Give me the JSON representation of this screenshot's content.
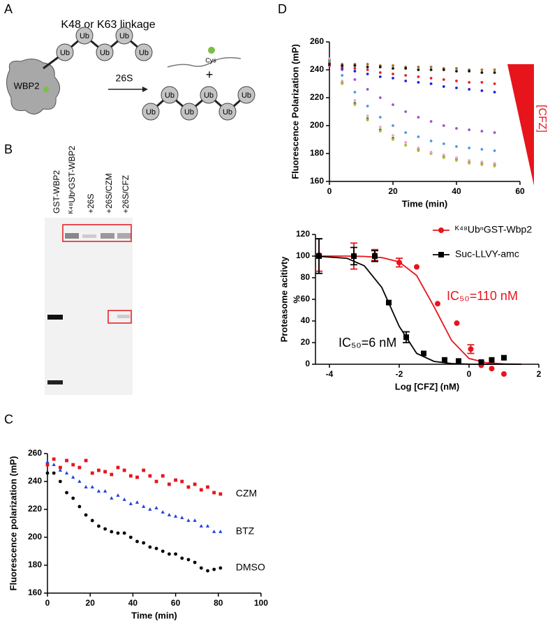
{
  "panels": [
    "A",
    "B",
    "C",
    "D"
  ],
  "diagram": {
    "linkage_label": "K48 or K63 linkage",
    "substrate": "WBP2",
    "enzyme": "26S",
    "ubiquitin": "Ub",
    "cysteine": "Cys",
    "plus": "+"
  },
  "gel": {
    "lanes": [
      "GST-WBP2",
      "ᴷ⁴⁸UbⁿGST-WBP2",
      "+26S",
      "+26S/CZM",
      "+26S/CFZ"
    ]
  },
  "chart_data": [
    {
      "type": "scatter",
      "x_label": "Time (min)",
      "y_label": "Fluorescence polarization (mP)",
      "xlim": [
        0,
        100
      ],
      "ylim": [
        160,
        260
      ],
      "xticks": [
        0,
        20,
        40,
        60,
        80,
        100
      ],
      "yticks": [
        160,
        180,
        200,
        220,
        240,
        260
      ],
      "series": [
        {
          "name": "CZM",
          "color": "#e8141c",
          "marker": "square",
          "x": [
            0,
            3,
            6,
            9,
            12,
            15,
            18,
            21,
            24,
            27,
            30,
            33,
            36,
            39,
            42,
            45,
            48,
            51,
            54,
            57,
            60,
            63,
            66,
            69,
            72,
            75,
            78,
            81
          ],
          "values": [
            252,
            256,
            250,
            255,
            252,
            250,
            255,
            246,
            248,
            247,
            245,
            250,
            248,
            244,
            243,
            248,
            244,
            240,
            244,
            238,
            241,
            240,
            236,
            238,
            234,
            236,
            232,
            231
          ]
        },
        {
          "name": "BTZ",
          "color": "#1f3fe0",
          "marker": "triangle",
          "x": [
            0,
            3,
            6,
            9,
            12,
            15,
            18,
            21,
            24,
            27,
            30,
            33,
            36,
            39,
            42,
            45,
            48,
            51,
            54,
            57,
            60,
            63,
            66,
            69,
            72,
            75,
            78,
            81
          ],
          "values": [
            254,
            252,
            248,
            246,
            243,
            240,
            236,
            236,
            233,
            233,
            228,
            230,
            227,
            224,
            225,
            222,
            220,
            221,
            218,
            216,
            215,
            214,
            212,
            212,
            208,
            208,
            204,
            204
          ]
        },
        {
          "name": "DMSO",
          "color": "#000000",
          "marker": "circle",
          "x": [
            0,
            3,
            6,
            9,
            12,
            15,
            18,
            21,
            24,
            27,
            30,
            33,
            36,
            39,
            42,
            45,
            48,
            51,
            54,
            57,
            60,
            63,
            66,
            69,
            72,
            75,
            78,
            81
          ],
          "values": [
            246,
            246,
            240,
            232,
            228,
            222,
            216,
            212,
            208,
            206,
            204,
            203,
            203,
            200,
            197,
            196,
            193,
            192,
            190,
            188,
            188,
            185,
            184,
            182,
            178,
            176,
            177,
            178
          ]
        }
      ]
    },
    {
      "type": "scatter",
      "x_label": "Time (min)",
      "y_label": "Fluorescence Polarization (mP)",
      "annotation": "[CFZ]",
      "xlim": [
        0,
        60
      ],
      "ylim": [
        160,
        260
      ],
      "xticks": [
        0,
        20,
        40,
        60
      ],
      "yticks": [
        160,
        180,
        200,
        220,
        240,
        260
      ],
      "series": [
        {
          "color": "#2a8a2a",
          "marker": "circle",
          "x": [
            0,
            4,
            8,
            12,
            16,
            20,
            24,
            28,
            32,
            36,
            40,
            44,
            48,
            52
          ],
          "values": [
            247,
            231,
            216,
            205,
            197,
            191,
            186,
            183,
            180,
            178,
            176,
            174,
            173,
            172
          ]
        },
        {
          "color": "#b8b830",
          "marker": "circle",
          "x": [
            0,
            4,
            8,
            12,
            16,
            20,
            24,
            28,
            32,
            36,
            40,
            44,
            48,
            52
          ],
          "values": [
            246,
            230,
            215,
            204,
            196,
            190,
            186,
            182,
            180,
            177,
            175,
            173,
            172,
            171
          ]
        },
        {
          "color": "#f0a0c8",
          "marker": "circle",
          "x": [
            0,
            4,
            8,
            12,
            16,
            20,
            24,
            28,
            32,
            36,
            40,
            44,
            48,
            52
          ],
          "values": [
            248,
            232,
            218,
            207,
            199,
            193,
            188,
            184,
            181,
            179,
            177,
            175,
            174,
            173
          ]
        },
        {
          "color": "#4a9ae8",
          "marker": "circle",
          "x": [
            0,
            4,
            8,
            12,
            16,
            20,
            24,
            28,
            32,
            36,
            40,
            44,
            48,
            52
          ],
          "values": [
            246,
            236,
            224,
            214,
            206,
            200,
            195,
            192,
            189,
            187,
            185,
            184,
            183,
            182
          ]
        },
        {
          "color": "#a050d0",
          "marker": "circle",
          "x": [
            0,
            4,
            8,
            12,
            16,
            20,
            24,
            28,
            32,
            36,
            40,
            44,
            48,
            52
          ],
          "values": [
            245,
            240,
            233,
            226,
            220,
            215,
            210,
            206,
            203,
            200,
            198,
            197,
            196,
            195
          ]
        },
        {
          "color": "#2020e0",
          "marker": "circle",
          "x": [
            0,
            4,
            8,
            12,
            16,
            20,
            24,
            28,
            32,
            36,
            40,
            44,
            48,
            52
          ],
          "values": [
            243,
            241,
            239,
            237,
            235,
            234,
            232,
            231,
            230,
            228,
            227,
            226,
            225,
            224
          ]
        },
        {
          "color": "#e8202a",
          "marker": "circle",
          "x": [
            0,
            4,
            8,
            12,
            16,
            20,
            24,
            28,
            32,
            36,
            40,
            44,
            48,
            52
          ],
          "values": [
            243,
            242,
            241,
            240,
            238,
            237,
            236,
            235,
            234,
            233,
            232,
            231,
            231,
            230
          ]
        },
        {
          "color": "#a0702a",
          "marker": "circle",
          "x": [
            0,
            4,
            8,
            12,
            16,
            20,
            24,
            28,
            32,
            36,
            40,
            44,
            48,
            52
          ],
          "values": [
            245,
            244,
            244,
            244,
            243,
            243,
            242,
            242,
            242,
            241,
            241,
            240,
            240,
            240
          ]
        },
        {
          "color": "#111111",
          "marker": "circle",
          "x": [
            0,
            4,
            8,
            12,
            16,
            20,
            24,
            28,
            32,
            36,
            40,
            44,
            48,
            52
          ],
          "values": [
            244,
            243,
            243,
            242,
            242,
            241,
            241,
            240,
            240,
            240,
            239,
            239,
            238,
            238
          ]
        }
      ]
    },
    {
      "type": "scatter",
      "x_label": "Log [CFZ] (nM)",
      "y_label": [
        "Proteasome acitivty",
        "%"
      ],
      "annotations": [
        "IC₅₀=110 nM",
        "IC₅₀=6 nM"
      ],
      "xlim": [
        -4.4,
        2
      ],
      "ylim": [
        0,
        120
      ],
      "xticks": [
        -4,
        -2,
        0,
        2
      ],
      "yticks": [
        0,
        20,
        40,
        60,
        80,
        100,
        120
      ],
      "series": [
        {
          "name": "ᴷ⁴⁸UbⁿGST-Wbp2",
          "color": "#e8141c",
          "marker": "circle",
          "x": [
            -4.3,
            -3.3,
            -2.7,
            -2.0,
            -1.5,
            -0.9,
            -0.35,
            0.05,
            0.35,
            0.65,
            1.0
          ],
          "values": [
            101,
            100,
            101,
            94,
            90,
            56,
            38,
            14,
            -1,
            -4,
            -9
          ],
          "errors": [
            15,
            12,
            5,
            4,
            null,
            null,
            null,
            4,
            null,
            null,
            null
          ],
          "fit_x": [
            -4.4,
            -3.5,
            -3,
            -2.5,
            -2,
            -1.5,
            -1,
            -0.5,
            0,
            0.5,
            1,
            1.5
          ],
          "fit_values": [
            100,
            100,
            99.7,
            98.6,
            94.6,
            82,
            53,
            22,
            5.3,
            1.4,
            0.3,
            0.1
          ]
        },
        {
          "name": "Suc-LLVY-amc",
          "color": "#000000",
          "marker": "square",
          "x": [
            -4.3,
            -3.3,
            -2.7,
            -2.3,
            -1.8,
            -1.3,
            -0.7,
            -0.3,
            0.35,
            0.65,
            1.0
          ],
          "values": [
            100,
            100,
            100,
            57,
            25,
            10,
            4,
            3,
            2,
            4,
            6
          ],
          "errors": [
            16,
            8,
            5,
            null,
            5,
            null,
            null,
            null,
            null,
            null,
            null
          ],
          "fit_x": [
            -4.4,
            -3.5,
            -3,
            -2.5,
            -2,
            -1.5,
            -1,
            -0.5,
            0,
            0.5,
            1,
            1.5
          ],
          "fit_values": [
            99.9,
            98,
            91,
            71,
            35,
            10,
            2.6,
            0.6,
            0.1,
            0,
            0,
            0
          ]
        }
      ]
    }
  ]
}
